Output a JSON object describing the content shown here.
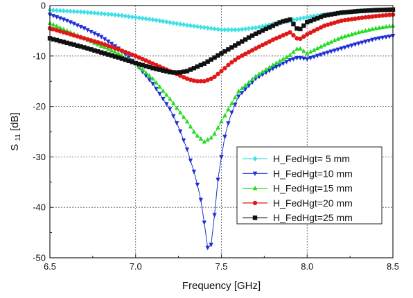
{
  "chart_data": {
    "type": "line",
    "xlabel": "Frequency [GHz]",
    "ylabel_main": "S",
    "ylabel_sub": "11",
    "ylabel_unit": " [dB]",
    "xlim": [
      6.5,
      8.5
    ],
    "ylim": [
      -50,
      0
    ],
    "x_ticks": [
      "6.5",
      "7.0",
      "7.5",
      "8.0",
      "8.5"
    ],
    "y_ticks": [
      "0",
      "-10",
      "-20",
      "-30",
      "-40",
      "-50"
    ],
    "grid": true,
    "legend_position": "lower-right",
    "series": [
      {
        "name": "H_FedHgt= 5 mm",
        "color": "#40e0e6",
        "marker": "diamond",
        "x": [
          6.5,
          6.7,
          6.9,
          7.1,
          7.3,
          7.5,
          7.6,
          7.7,
          7.8,
          7.9,
          8.0,
          8.1,
          8.2,
          8.3,
          8.4,
          8.5
        ],
        "y": [
          -0.9,
          -1.3,
          -1.9,
          -2.8,
          -3.9,
          -4.8,
          -4.8,
          -4.4,
          -3.7,
          -3.0,
          -2.3,
          -1.8,
          -1.5,
          -1.2,
          -1.0,
          -0.9
        ]
      },
      {
        "name": "H_FedHgt=10 mm",
        "color": "#1f2fd6",
        "marker": "triangle-down",
        "x": [
          6.5,
          6.6,
          6.7,
          6.8,
          6.9,
          7.0,
          7.1,
          7.2,
          7.25,
          7.3,
          7.35,
          7.38,
          7.4,
          7.42,
          7.43,
          7.45,
          7.47,
          7.48,
          7.5,
          7.52,
          7.55,
          7.6,
          7.7,
          7.8,
          7.9,
          7.95,
          8.0,
          8.1,
          8.2,
          8.3,
          8.4,
          8.5
        ],
        "y": [
          -1.8,
          -3.0,
          -4.5,
          -6.2,
          -8.5,
          -11.5,
          -15.5,
          -20.5,
          -24.0,
          -28.5,
          -34.0,
          -38.5,
          -43.0,
          -48.0,
          -49.8,
          -45.0,
          -38.0,
          -34.5,
          -30.0,
          -26.0,
          -22.0,
          -18.0,
          -14.5,
          -12.5,
          -10.8,
          -10.3,
          -10.6,
          -9.5,
          -8.5,
          -7.5,
          -6.6,
          -6.0
        ]
      },
      {
        "name": "H_FedHgt=15 mm",
        "color": "#22dd22",
        "marker": "triangle-up",
        "x": [
          6.5,
          6.6,
          6.7,
          6.8,
          6.9,
          7.0,
          7.1,
          7.2,
          7.3,
          7.35,
          7.4,
          7.45,
          7.5,
          7.55,
          7.6,
          7.7,
          7.8,
          7.9,
          7.95,
          8.0,
          8.1,
          8.2,
          8.3,
          8.4,
          8.5
        ],
        "y": [
          -3.5,
          -5.0,
          -6.5,
          -8.0,
          -9.5,
          -11.5,
          -14.5,
          -18.5,
          -23.0,
          -25.5,
          -27.0,
          -26.0,
          -23.0,
          -20.0,
          -17.0,
          -14.0,
          -11.8,
          -9.8,
          -8.3,
          -9.5,
          -7.8,
          -6.3,
          -5.3,
          -4.5,
          -4.0
        ]
      },
      {
        "name": "H_FedHgt=20 mm",
        "color": "#e01818",
        "marker": "circle",
        "x": [
          6.5,
          6.6,
          6.7,
          6.8,
          6.9,
          7.0,
          7.1,
          7.2,
          7.3,
          7.35,
          7.4,
          7.45,
          7.5,
          7.55,
          7.6,
          7.7,
          7.8,
          7.9,
          7.95,
          8.0,
          8.1,
          8.2,
          8.3,
          8.4,
          8.5
        ],
        "y": [
          -4.5,
          -5.5,
          -6.5,
          -7.5,
          -8.7,
          -10.0,
          -11.5,
          -13.0,
          -14.5,
          -15.0,
          -15.0,
          -14.4,
          -13.0,
          -11.5,
          -10.3,
          -8.5,
          -6.8,
          -5.3,
          -6.8,
          -5.7,
          -4.0,
          -3.0,
          -2.5,
          -2.1,
          -1.8
        ]
      },
      {
        "name": "H_FedHgt=25 mm",
        "color": "#111111",
        "marker": "square",
        "x": [
          6.5,
          6.6,
          6.7,
          6.8,
          6.9,
          7.0,
          7.1,
          7.2,
          7.25,
          7.3,
          7.4,
          7.5,
          7.6,
          7.7,
          7.8,
          7.85,
          7.9,
          7.95,
          8.0,
          8.1,
          8.2,
          8.3,
          8.4,
          8.5
        ],
        "y": [
          -6.5,
          -7.4,
          -8.3,
          -9.3,
          -10.3,
          -11.4,
          -12.4,
          -13.2,
          -13.3,
          -13.0,
          -11.5,
          -9.5,
          -7.5,
          -5.6,
          -4.0,
          -3.2,
          -2.8,
          -5.0,
          -3.3,
          -2.0,
          -1.4,
          -1.1,
          -0.9,
          -0.8
        ]
      }
    ]
  }
}
